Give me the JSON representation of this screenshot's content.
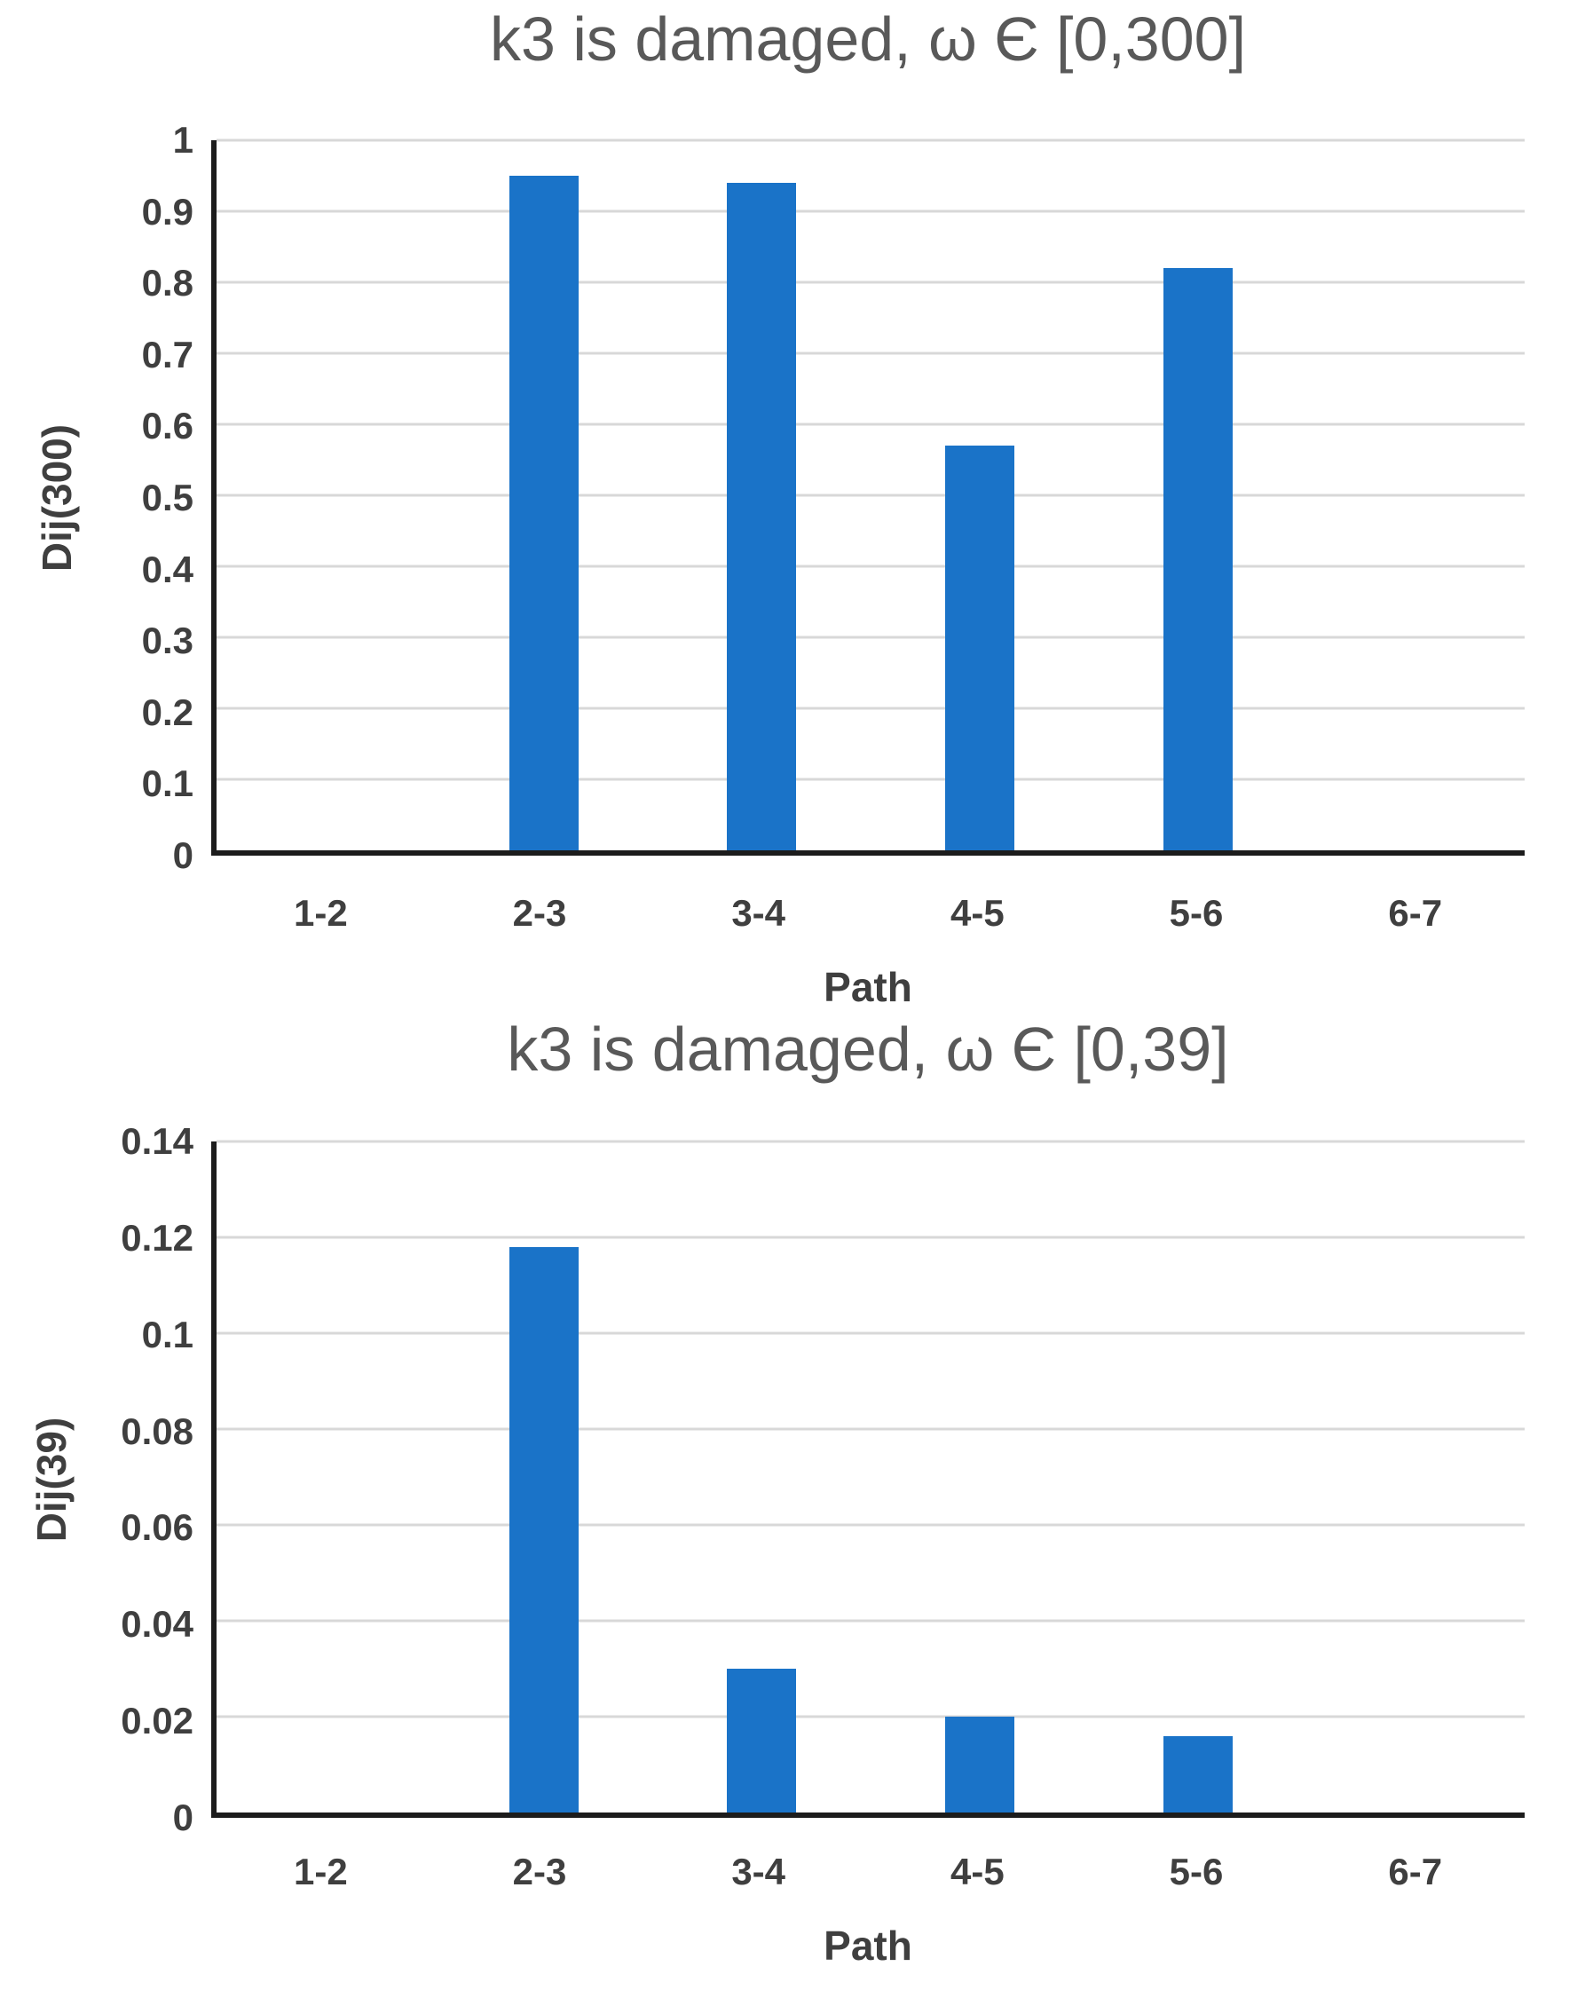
{
  "page": {
    "background": "#ffffff"
  },
  "colors": {
    "bar": "#1a73c8",
    "gridline": "#d8d8d8",
    "axis_line": "#1c1c1c",
    "tick_label": "#3f3f3f",
    "title": "#595959"
  },
  "chart_data": [
    {
      "type": "bar",
      "title": "k3 is damaged, ω Є [0,300]",
      "xlabel": "Path",
      "ylabel": "Dij(300)",
      "categories": [
        "1-2",
        "2-3",
        "3-4",
        "4-5",
        "5-6",
        "6-7"
      ],
      "values": [
        0,
        0.95,
        0.94,
        0.57,
        0.82,
        0
      ],
      "ylim": [
        0,
        1
      ],
      "yticks": [
        "0",
        "0.1",
        "0.2",
        "0.3",
        "0.4",
        "0.5",
        "0.6",
        "0.7",
        "0.8",
        "0.9",
        "1"
      ],
      "grid": "horizontal",
      "legend": "none",
      "bar_color": "#1a73c8"
    },
    {
      "type": "bar",
      "title": "k3 is damaged, ω Є [0,39]",
      "xlabel": "Path",
      "ylabel": "Dij(39)",
      "categories": [
        "1-2",
        "2-3",
        "3-4",
        "4-5",
        "5-6",
        "6-7"
      ],
      "values": [
        0,
        0.118,
        0.03,
        0.02,
        0.016,
        0
      ],
      "ylim": [
        0,
        0.14
      ],
      "yticks": [
        "0",
        "0.02",
        "0.04",
        "0.06",
        "0.08",
        "0.1",
        "0.12",
        "0.14"
      ],
      "grid": "horizontal",
      "legend": "none",
      "bar_color": "#1a73c8"
    }
  ]
}
